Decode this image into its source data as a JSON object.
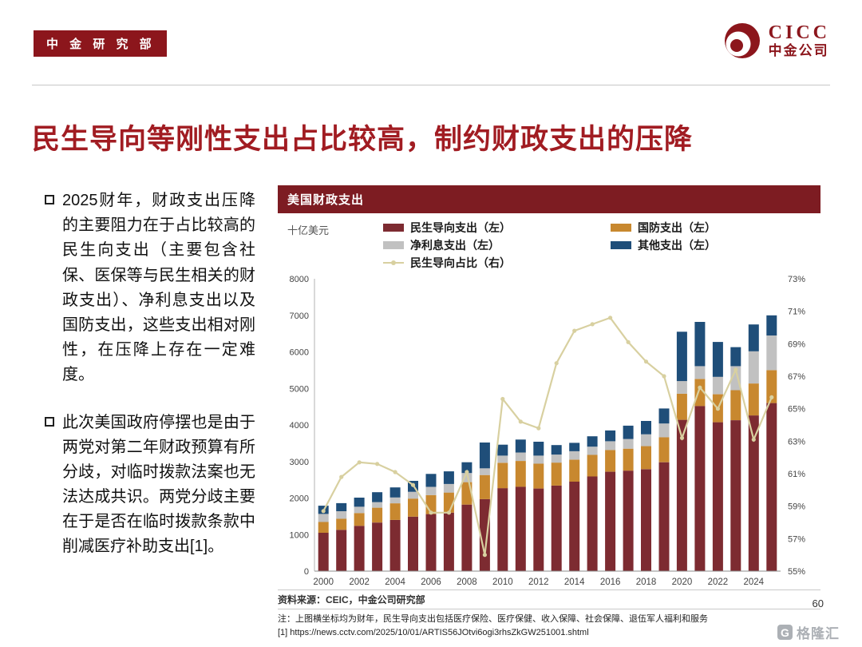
{
  "page": {
    "badge": "中 金 研 究 部",
    "logo_en": "CICC",
    "logo_cn": "中金公司",
    "title": "民生导向等刚性支出占比较高，制约财政支出的压降",
    "page_number": "60",
    "watermark": "格隆汇",
    "watermark_icon": "G",
    "brand_color": "#8C161C",
    "title_color": "#A11C22"
  },
  "bullets": [
    "2025财年，财政支出压降的主要阻力在于占比较高的民生向支出（主要包含社保、医保等与民生相关的财政支出）、净利息支出以及国防支出，这些支出相对刚性，在压降上存在一定难度。",
    "此次美国政府停摆也是由于两党对第二年财政预算有所分歧，对临时拨款法案也无法达成共识。两党分歧主要在于是否在临时拨款条款中削减医疗补助支出[1]。"
  ],
  "chart": {
    "header": "美国财政支出",
    "unit_label": "十亿美元"
  },
  "chart_data": {
    "type": "bar",
    "subtype": "stacked-bar-with-line",
    "title": "美国财政支出",
    "unit": "十亿美元",
    "x": [
      2000,
      2001,
      2002,
      2003,
      2004,
      2005,
      2006,
      2007,
      2008,
      2009,
      2010,
      2011,
      2012,
      2013,
      2014,
      2015,
      2016,
      2017,
      2018,
      2019,
      2020,
      2021,
      2022,
      2023,
      2024,
      2025
    ],
    "x_tick_step": 2,
    "left_axis": {
      "min": 0,
      "max": 8000,
      "step": 1000
    },
    "right_axis": {
      "min": 55,
      "max": 73,
      "step": 2,
      "suffix": "%"
    },
    "grid": false,
    "legend_position": "top",
    "series": [
      {
        "name": "民生导向支出（左）",
        "type": "bar",
        "axis": "left",
        "color": "#7D2B31",
        "values": [
          1050,
          1130,
          1240,
          1330,
          1400,
          1490,
          1560,
          1600,
          1820,
          1970,
          2270,
          2310,
          2260,
          2340,
          2450,
          2590,
          2720,
          2750,
          2790,
          2980,
          4140,
          4520,
          4075,
          4130,
          4260,
          4600
        ]
      },
      {
        "name": "国防支出（左）",
        "type": "bar",
        "axis": "left",
        "color": "#C8882F",
        "values": [
          295,
          305,
          350,
          405,
          455,
          495,
          520,
          550,
          615,
          660,
          695,
          705,
          680,
          630,
          600,
          590,
          595,
          600,
          630,
          685,
          715,
          740,
          765,
          820,
          875,
          900
        ]
      },
      {
        "name": "净利息支出（左）",
        "type": "bar",
        "axis": "left",
        "color": "#C1C1C1",
        "values": [
          220,
          205,
          170,
          155,
          160,
          185,
          225,
          235,
          250,
          185,
          195,
          230,
          220,
          220,
          230,
          225,
          240,
          265,
          325,
          375,
          345,
          350,
          475,
          660,
          880,
          950
        ]
      },
      {
        "name": "其他支出（左）",
        "type": "bar",
        "axis": "left",
        "color": "#1F4E79",
        "values": [
          225,
          220,
          250,
          270,
          275,
          300,
          355,
          345,
          295,
          705,
          300,
          355,
          380,
          260,
          230,
          285,
          295,
          365,
          365,
          410,
          1350,
          1210,
          955,
          520,
          735,
          550
        ]
      },
      {
        "name": "民生导向占比（右）",
        "type": "line",
        "axis": "right",
        "color": "#D8D0A0",
        "values": [
          58.7,
          60.8,
          61.7,
          61.6,
          61.1,
          60.3,
          58.6,
          58.6,
          61.1,
          56.0,
          65.6,
          64.2,
          63.8,
          67.8,
          69.8,
          70.2,
          70.6,
          69.1,
          67.9,
          67.0,
          63.2,
          66.3,
          65.0,
          67.4,
          63.1,
          65.7
        ]
      }
    ]
  },
  "footer": {
    "source": "资料来源：CEIC，中金公司研究部",
    "note": "注：上图横坐标均为财年，民生导向支出包括医疗保险、医疗保健、收入保障、社会保障、退伍军人福利和服务",
    "ref": "[1] https://news.cctv.com/2025/10/01/ARTIS56JOtvi6ogi3rhsZkGW251001.shtml"
  }
}
